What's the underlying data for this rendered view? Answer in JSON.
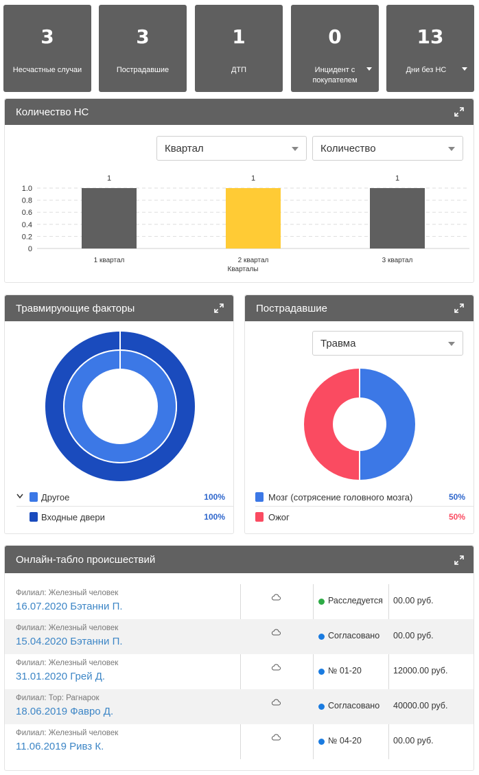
{
  "stats": [
    {
      "value": "3",
      "label": "Несчастные случаи",
      "dropdown": false
    },
    {
      "value": "3",
      "label": "Пострадавшие",
      "dropdown": false
    },
    {
      "value": "1",
      "label": "ДТП",
      "dropdown": false
    },
    {
      "value": "0",
      "label": "Инцидент с покупателем",
      "dropdown": true
    },
    {
      "value": "13",
      "label": "Дни без НС",
      "dropdown": true
    }
  ],
  "count_panel": {
    "title": "Количество НС",
    "period_select": "Квартал",
    "metric_select": "Количество"
  },
  "chart_data": {
    "type": "bar",
    "categories": [
      "1 квартал",
      "2 квартал",
      "3 квартал"
    ],
    "values": [
      1,
      1,
      1
    ],
    "data_labels": [
      "1",
      "1",
      "1"
    ],
    "colors": [
      "#5f5f5f",
      "#ffcb35",
      "#5f5f5f"
    ],
    "xlabel": "Кварталы",
    "ylabel": "",
    "ylim": [
      0,
      1.0
    ],
    "yticks": [
      "1.0",
      "0.8",
      "0.6",
      "0.4",
      "0.2",
      "0"
    ],
    "grid": true
  },
  "factors_panel": {
    "title": "Травмирующие факторы",
    "legend": [
      {
        "name": "Другое",
        "pct": "100%",
        "color": "#3c78e6",
        "expandable": true
      },
      {
        "name": "Входные двери",
        "pct": "100%",
        "color": "#1a4bbd",
        "expandable": false
      }
    ]
  },
  "victims_panel": {
    "title": "Пострадавшие",
    "select": "Травма",
    "legend": [
      {
        "name": "Мозг (сотрясение головного мозга)",
        "pct": "50%",
        "color": "#3c78e6"
      },
      {
        "name": "Ожог",
        "pct": "50%",
        "color": "#fa4b61"
      }
    ]
  },
  "incidents_panel": {
    "title": "Онлайн-табло происшествий",
    "rows": [
      {
        "branch": "Филиал: Железный человек",
        "link": "16.07.2020 Бэтанни П.",
        "status": "Расследуется",
        "status_color": "#2eab46",
        "amount": "00.00 руб."
      },
      {
        "branch": "Филиал: Железный человек",
        "link": "15.04.2020 Бэтанни П.",
        "status": "Согласовано",
        "status_color": "#1a7be0",
        "amount": "00.00 руб."
      },
      {
        "branch": "Филиал: Железный человек",
        "link": "31.01.2020 Грей Д.",
        "status": "№ 01-20",
        "status_color": "#1a7be0",
        "amount": "12000.00 руб."
      },
      {
        "branch": "Филиал: Тор: Рагнарок",
        "link": "18.06.2019 Фавро Д.",
        "status": "Согласовано",
        "status_color": "#1a7be0",
        "amount": "40000.00 руб."
      },
      {
        "branch": "Филиал: Железный человек",
        "link": "11.06.2019 Ривз К.",
        "status": "№ 04-20",
        "status_color": "#1a7be0",
        "amount": "00.00 руб."
      }
    ]
  }
}
